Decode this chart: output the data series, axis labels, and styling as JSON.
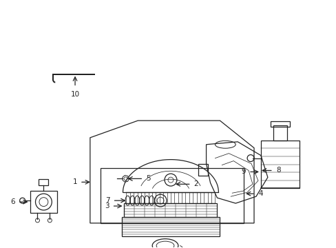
{
  "title": "",
  "background_color": "#ffffff",
  "line_color": "#222222",
  "label_color": "#000000",
  "fig_width": 4.89,
  "fig_height": 3.6,
  "dpi": 100,
  "parts": {
    "part1_label": "1",
    "part2_label": "2",
    "part3_label": "3",
    "part4_label": "4",
    "part5_label": "5",
    "part6_label": "6",
    "part7_label": "7",
    "part8_label": "8",
    "part9_label": "9",
    "part10_label": "10"
  }
}
